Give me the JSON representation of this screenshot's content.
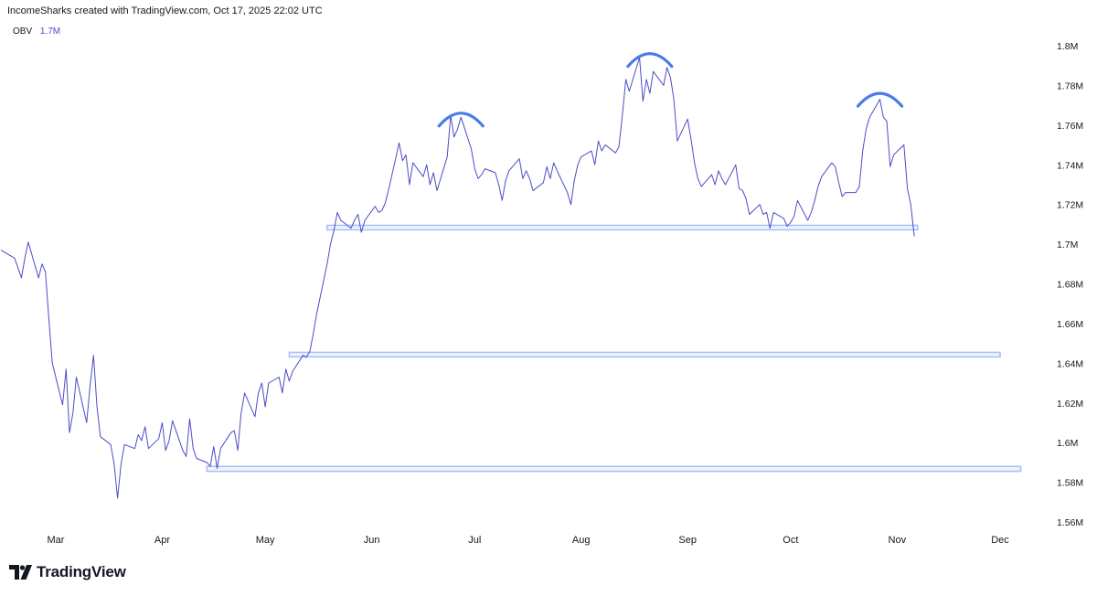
{
  "header": {
    "attribution": "IncomeSharks created with TradingView.com, Oct 17, 2025 22:02 UTC"
  },
  "legend": {
    "indicator": "OBV",
    "value": "1.7M"
  },
  "footer": {
    "brand": "TradingView"
  },
  "colors": {
    "line": "#4c4cc6",
    "zone_stroke": "#a9bff5",
    "zone_fill": "#eef3fe",
    "arc": "#4b7bea",
    "axis_text": "#131722"
  },
  "chart_data": {
    "type": "line",
    "series": [
      {
        "name": "OBV",
        "points": [
          [
            "2025-02-13",
            1.697
          ],
          [
            "2025-02-14",
            1.696
          ],
          [
            "2025-02-17",
            1.693
          ],
          [
            "2025-02-18",
            1.688
          ],
          [
            "2025-02-19",
            1.683
          ],
          [
            "2025-02-20",
            1.693
          ],
          [
            "2025-02-21",
            1.701
          ],
          [
            "2025-02-24",
            1.683
          ],
          [
            "2025-02-25",
            1.69
          ],
          [
            "2025-02-26",
            1.686
          ],
          [
            "2025-02-27",
            1.662
          ],
          [
            "2025-02-28",
            1.64
          ],
          [
            "2025-03-03",
            1.619
          ],
          [
            "2025-03-04",
            1.637
          ],
          [
            "2025-03-05",
            1.605
          ],
          [
            "2025-03-06",
            1.615
          ],
          [
            "2025-03-07",
            1.633
          ],
          [
            "2025-03-10",
            1.61
          ],
          [
            "2025-03-11",
            1.629
          ],
          [
            "2025-03-12",
            1.644
          ],
          [
            "2025-03-13",
            1.618
          ],
          [
            "2025-03-14",
            1.603
          ],
          [
            "2025-03-17",
            1.599
          ],
          [
            "2025-03-18",
            1.589
          ],
          [
            "2025-03-19",
            1.572
          ],
          [
            "2025-03-20",
            1.589
          ],
          [
            "2025-03-21",
            1.599
          ],
          [
            "2025-03-24",
            1.597
          ],
          [
            "2025-03-25",
            1.604
          ],
          [
            "2025-03-26",
            1.601
          ],
          [
            "2025-03-27",
            1.608
          ],
          [
            "2025-03-28",
            1.597
          ],
          [
            "2025-03-31",
            1.602
          ],
          [
            "2025-04-01",
            1.61
          ],
          [
            "2025-04-02",
            1.596
          ],
          [
            "2025-04-03",
            1.601
          ],
          [
            "2025-04-04",
            1.611
          ],
          [
            "2025-04-07",
            1.596
          ],
          [
            "2025-04-08",
            1.593
          ],
          [
            "2025-04-09",
            1.612
          ],
          [
            "2025-04-10",
            1.597
          ],
          [
            "2025-04-11",
            1.592
          ],
          [
            "2025-04-14",
            1.59
          ],
          [
            "2025-04-15",
            1.588
          ],
          [
            "2025-04-16",
            1.598
          ],
          [
            "2025-04-17",
            1.587
          ],
          [
            "2025-04-18",
            1.597
          ],
          [
            "2025-04-21",
            1.605
          ],
          [
            "2025-04-22",
            1.606
          ],
          [
            "2025-04-23",
            1.596
          ],
          [
            "2025-04-24",
            1.615
          ],
          [
            "2025-04-25",
            1.625
          ],
          [
            "2025-04-28",
            1.613
          ],
          [
            "2025-04-29",
            1.625
          ],
          [
            "2025-04-30",
            1.63
          ],
          [
            "2025-05-01",
            1.618
          ],
          [
            "2025-05-02",
            1.63
          ],
          [
            "2025-05-05",
            1.633
          ],
          [
            "2025-05-06",
            1.625
          ],
          [
            "2025-05-07",
            1.637
          ],
          [
            "2025-05-08",
            1.631
          ],
          [
            "2025-05-09",
            1.636
          ],
          [
            "2025-05-12",
            1.644
          ],
          [
            "2025-05-13",
            1.643
          ],
          [
            "2025-05-14",
            1.646
          ],
          [
            "2025-05-15",
            1.655
          ],
          [
            "2025-05-16",
            1.665
          ],
          [
            "2025-05-19",
            1.69
          ],
          [
            "2025-05-20",
            1.7
          ],
          [
            "2025-05-21",
            1.707
          ],
          [
            "2025-05-22",
            1.716
          ],
          [
            "2025-05-23",
            1.712
          ],
          [
            "2025-05-26",
            1.708
          ],
          [
            "2025-05-27",
            1.712
          ],
          [
            "2025-05-28",
            1.715
          ],
          [
            "2025-05-29",
            1.706
          ],
          [
            "2025-05-30",
            1.712
          ],
          [
            "2025-06-02",
            1.719
          ],
          [
            "2025-06-03",
            1.716
          ],
          [
            "2025-06-04",
            1.717
          ],
          [
            "2025-06-05",
            1.721
          ],
          [
            "2025-06-06",
            1.728
          ],
          [
            "2025-06-09",
            1.751
          ],
          [
            "2025-06-10",
            1.742
          ],
          [
            "2025-06-11",
            1.745
          ],
          [
            "2025-06-12",
            1.73
          ],
          [
            "2025-06-13",
            1.741
          ],
          [
            "2025-06-16",
            1.734
          ],
          [
            "2025-06-17",
            1.74
          ],
          [
            "2025-06-18",
            1.73
          ],
          [
            "2025-06-19",
            1.736
          ],
          [
            "2025-06-20",
            1.727
          ],
          [
            "2025-06-23",
            1.744
          ],
          [
            "2025-06-24",
            1.765
          ],
          [
            "2025-06-25",
            1.754
          ],
          [
            "2025-06-26",
            1.758
          ],
          [
            "2025-06-27",
            1.764
          ],
          [
            "2025-06-30",
            1.748
          ],
          [
            "2025-07-01",
            1.738
          ],
          [
            "2025-07-02",
            1.733
          ],
          [
            "2025-07-03",
            1.735
          ],
          [
            "2025-07-04",
            1.738
          ],
          [
            "2025-07-07",
            1.736
          ],
          [
            "2025-07-08",
            1.73
          ],
          [
            "2025-07-09",
            1.722
          ],
          [
            "2025-07-10",
            1.732
          ],
          [
            "2025-07-11",
            1.737
          ],
          [
            "2025-07-14",
            1.743
          ],
          [
            "2025-07-15",
            1.733
          ],
          [
            "2025-07-16",
            1.737
          ],
          [
            "2025-07-17",
            1.733
          ],
          [
            "2025-07-18",
            1.727
          ],
          [
            "2025-07-21",
            1.731
          ],
          [
            "2025-07-22",
            1.739
          ],
          [
            "2025-07-23",
            1.733
          ],
          [
            "2025-07-24",
            1.741
          ],
          [
            "2025-07-25",
            1.737
          ],
          [
            "2025-07-28",
            1.726
          ],
          [
            "2025-07-29",
            1.72
          ],
          [
            "2025-07-30",
            1.732
          ],
          [
            "2025-07-31",
            1.74
          ],
          [
            "2025-08-01",
            1.744
          ],
          [
            "2025-08-04",
            1.747
          ],
          [
            "2025-08-05",
            1.74
          ],
          [
            "2025-08-06",
            1.752
          ],
          [
            "2025-08-07",
            1.747
          ],
          [
            "2025-08-08",
            1.75
          ],
          [
            "2025-08-11",
            1.746
          ],
          [
            "2025-08-12",
            1.749
          ],
          [
            "2025-08-13",
            1.765
          ],
          [
            "2025-08-14",
            1.783
          ],
          [
            "2025-08-15",
            1.777
          ],
          [
            "2025-08-18",
            1.794
          ],
          [
            "2025-08-19",
            1.772
          ],
          [
            "2025-08-20",
            1.783
          ],
          [
            "2025-08-21",
            1.776
          ],
          [
            "2025-08-22",
            1.787
          ],
          [
            "2025-08-25",
            1.78
          ],
          [
            "2025-08-26",
            1.789
          ],
          [
            "2025-08-27",
            1.784
          ],
          [
            "2025-08-28",
            1.773
          ],
          [
            "2025-08-29",
            1.752
          ],
          [
            "2025-09-01",
            1.763
          ],
          [
            "2025-09-02",
            1.753
          ],
          [
            "2025-09-03",
            1.741
          ],
          [
            "2025-09-04",
            1.733
          ],
          [
            "2025-09-05",
            1.729
          ],
          [
            "2025-09-08",
            1.735
          ],
          [
            "2025-09-09",
            1.73
          ],
          [
            "2025-09-10",
            1.737
          ],
          [
            "2025-09-11",
            1.733
          ],
          [
            "2025-09-12",
            1.73
          ],
          [
            "2025-09-15",
            1.74
          ],
          [
            "2025-09-16",
            1.728
          ],
          [
            "2025-09-17",
            1.727
          ],
          [
            "2025-09-18",
            1.723
          ],
          [
            "2025-09-19",
            1.715
          ],
          [
            "2025-09-22",
            1.72
          ],
          [
            "2025-09-23",
            1.715
          ],
          [
            "2025-09-24",
            1.716
          ],
          [
            "2025-09-25",
            1.708
          ],
          [
            "2025-09-26",
            1.716
          ],
          [
            "2025-09-29",
            1.713
          ],
          [
            "2025-09-30",
            1.709
          ],
          [
            "2025-10-01",
            1.711
          ],
          [
            "2025-10-02",
            1.714
          ],
          [
            "2025-10-03",
            1.722
          ],
          [
            "2025-10-06",
            1.712
          ],
          [
            "2025-10-07",
            1.716
          ],
          [
            "2025-10-08",
            1.722
          ],
          [
            "2025-10-09",
            1.729
          ],
          [
            "2025-10-10",
            1.734
          ],
          [
            "2025-10-13",
            1.741
          ],
          [
            "2025-10-14",
            1.739
          ],
          [
            "2025-10-15",
            1.731
          ],
          [
            "2025-10-16",
            1.724
          ],
          [
            "2025-10-17",
            1.726
          ],
          [
            "2025-10-20",
            1.726
          ],
          [
            "2025-10-21",
            1.729
          ],
          [
            "2025-10-22",
            1.747
          ],
          [
            "2025-10-23",
            1.758
          ],
          [
            "2025-10-24",
            1.764
          ],
          [
            "2025-10-27",
            1.773
          ],
          [
            "2025-10-28",
            1.764
          ],
          [
            "2025-10-29",
            1.762
          ],
          [
            "2025-10-30",
            1.739
          ],
          [
            "2025-10-31",
            1.745
          ],
          [
            "2025-11-03",
            1.75
          ],
          [
            "2025-11-04",
            1.728
          ],
          [
            "2025-11-05",
            1.72
          ],
          [
            "2025-11-06",
            1.704
          ]
        ]
      }
    ],
    "zones": [
      {
        "start": "2025-05-19",
        "end": "2025-11-07",
        "low": 1.7075,
        "high": 1.7095
      },
      {
        "start": "2025-05-08",
        "end": "2025-12-01",
        "low": 1.6435,
        "high": 1.6455
      },
      {
        "start": "2025-04-14",
        "end": "2025-12-07",
        "low": 1.5855,
        "high": 1.588
      }
    ],
    "arcs": [
      {
        "center": "2025-06-27",
        "peak": 1.766
      },
      {
        "center": "2025-08-21",
        "peak": 1.796
      },
      {
        "center": "2025-10-27",
        "peak": 1.776
      }
    ],
    "x_ticks": [
      {
        "date": "2025-03-01",
        "label": "Mar"
      },
      {
        "date": "2025-04-01",
        "label": "Apr"
      },
      {
        "date": "2025-05-01",
        "label": "May"
      },
      {
        "date": "2025-06-01",
        "label": "Jun"
      },
      {
        "date": "2025-07-01",
        "label": "Jul"
      },
      {
        "date": "2025-08-01",
        "label": "Aug"
      },
      {
        "date": "2025-09-01",
        "label": "Sep"
      },
      {
        "date": "2025-10-01",
        "label": "Oct"
      },
      {
        "date": "2025-11-01",
        "label": "Nov"
      },
      {
        "date": "2025-12-01",
        "label": "Dec"
      }
    ],
    "y_ticks": [
      {
        "value": 1.8,
        "label": "1.8M"
      },
      {
        "value": 1.78,
        "label": "1.78M"
      },
      {
        "value": 1.76,
        "label": "1.76M"
      },
      {
        "value": 1.74,
        "label": "1.74M"
      },
      {
        "value": 1.72,
        "label": "1.72M"
      },
      {
        "value": 1.7,
        "label": "1.7M"
      },
      {
        "value": 1.68,
        "label": "1.68M"
      },
      {
        "value": 1.66,
        "label": "1.66M"
      },
      {
        "value": 1.64,
        "label": "1.64M"
      },
      {
        "value": 1.62,
        "label": "1.62M"
      },
      {
        "value": 1.6,
        "label": "1.6M"
      },
      {
        "value": 1.58,
        "label": "1.58M"
      },
      {
        "value": 1.56,
        "label": "1.56M"
      }
    ],
    "ylim": [
      1.55,
      1.81
    ],
    "grid": false
  }
}
